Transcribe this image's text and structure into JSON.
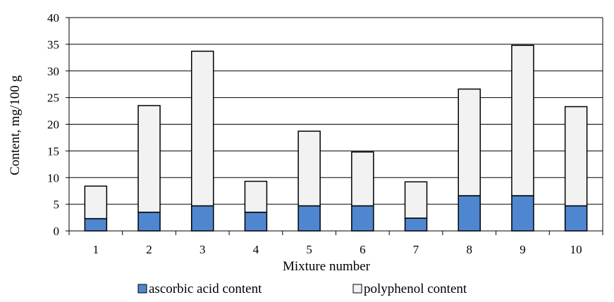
{
  "chart_data": {
    "type": "bar",
    "stacked": true,
    "categories": [
      "1",
      "2",
      "3",
      "4",
      "5",
      "6",
      "7",
      "8",
      "9",
      "10"
    ],
    "series": [
      {
        "name": "ascorbic acid content",
        "color": "#4f86d0",
        "values": [
          2.3,
          3.5,
          4.7,
          3.5,
          4.7,
          4.7,
          2.4,
          6.6,
          6.6,
          4.7
        ]
      },
      {
        "name": "polyphenol content",
        "color": "#f2f2f2",
        "values": [
          6.1,
          20.0,
          29.0,
          5.8,
          14.0,
          10.1,
          6.8,
          20.0,
          28.2,
          18.6
        ]
      }
    ],
    "xlabel": "Mixture number",
    "ylabel": "Content, mg/100 g",
    "ylim": [
      0,
      40
    ],
    "yticks": [
      "0",
      "5",
      "10",
      "15",
      "20",
      "25",
      "30",
      "35",
      "40"
    ],
    "grid": "horizontal",
    "legend_position": "bottom"
  }
}
